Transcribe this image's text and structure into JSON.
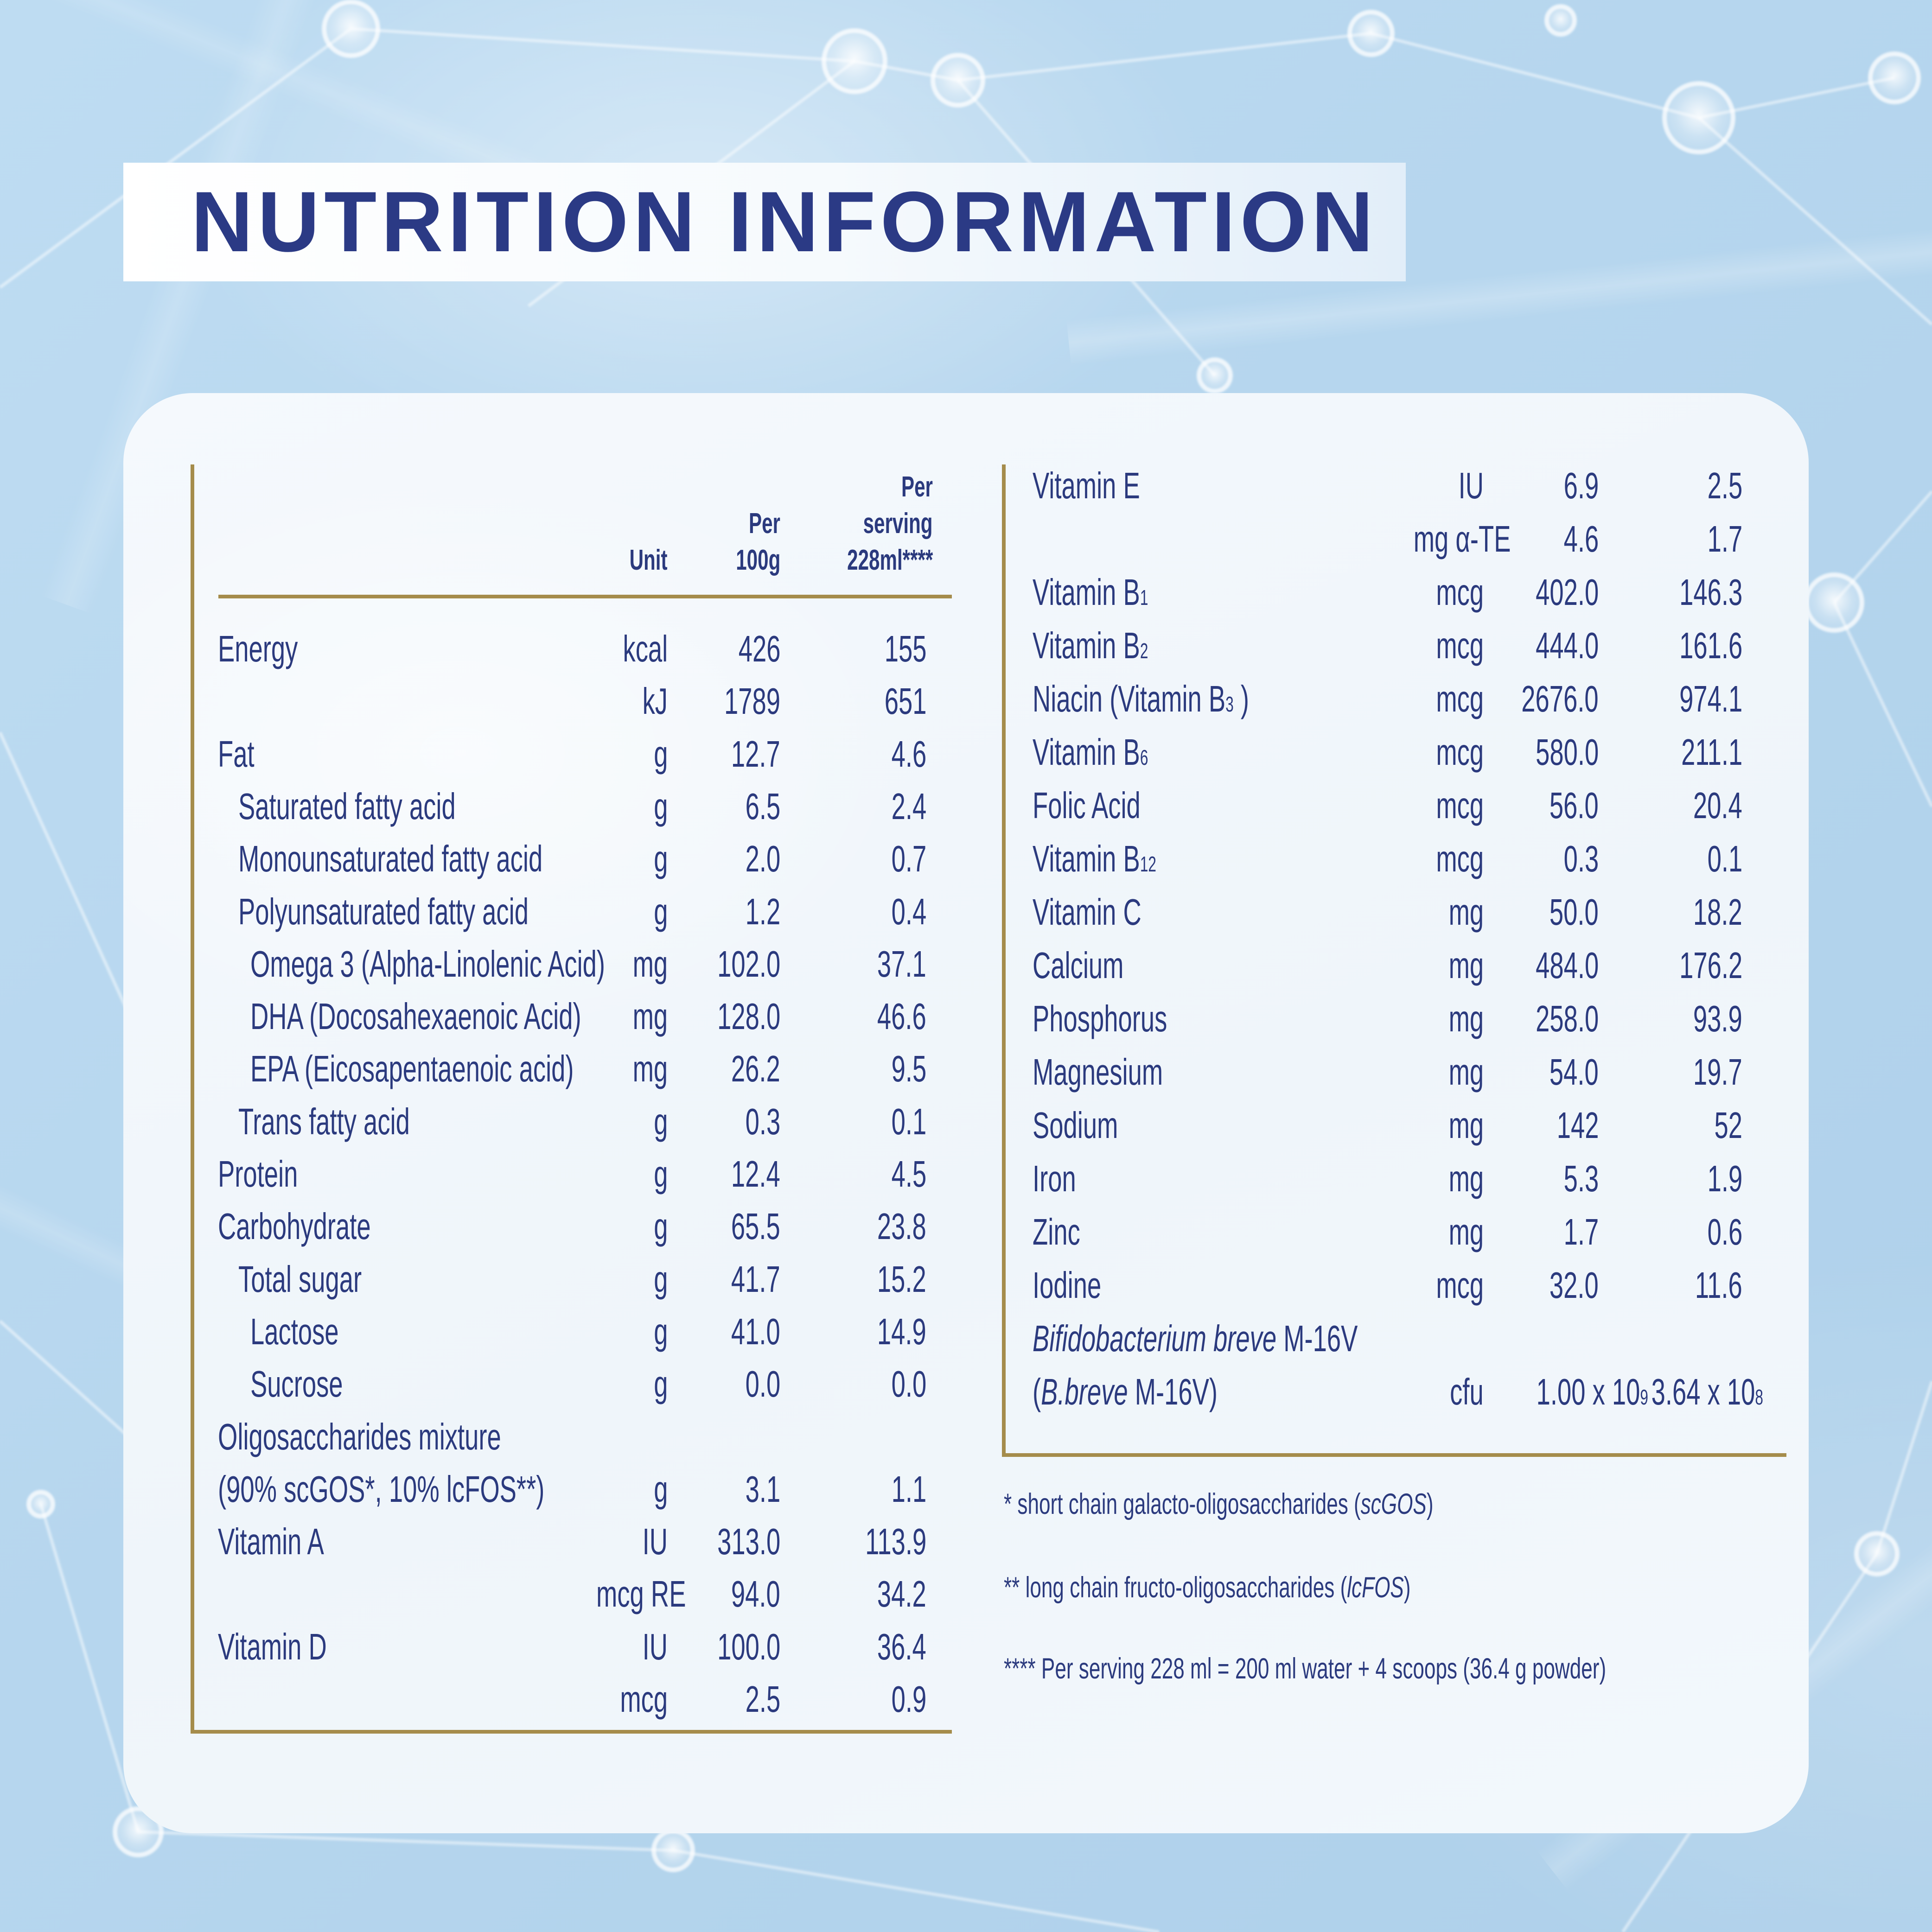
{
  "title": "NUTRITION INFORMATION",
  "colors": {
    "navy": "#2b3a7e",
    "navy_title": "#2b3a85",
    "gold": "#a58c4b",
    "background_blue": "#b6d6ee",
    "card": "#f1f6fb"
  },
  "table": {
    "header": {
      "unit": "Unit",
      "per_100g": [
        "Per",
        "100g"
      ],
      "per_serving": [
        "Per",
        "serving",
        "228ml****"
      ]
    },
    "left_rows": [
      {
        "label": "Energy",
        "indent": 0,
        "unit": "kcal",
        "per100": "426",
        "serving": "155"
      },
      {
        "label": "",
        "indent": 0,
        "unit": "kJ",
        "per100": "1789",
        "serving": "651"
      },
      {
        "label": "Fat",
        "indent": 0,
        "unit": "g",
        "per100": "12.7",
        "serving": "4.6"
      },
      {
        "label": "Saturated fatty acid",
        "indent": 1,
        "unit": "g",
        "per100": "6.5",
        "serving": "2.4"
      },
      {
        "label": "Monounsaturated fatty acid",
        "indent": 1,
        "unit": "g",
        "per100": "2.0",
        "serving": "0.7"
      },
      {
        "label": "Polyunsaturated fatty acid",
        "indent": 1,
        "unit": "g",
        "per100": "1.2",
        "serving": "0.4"
      },
      {
        "label": "Omega 3 (Alpha-Linolenic Acid)",
        "indent": 2,
        "unit": "mg",
        "per100": "102.0",
        "serving": "37.1"
      },
      {
        "label": "DHA (Docosahexaenoic Acid)",
        "indent": 2,
        "unit": "mg",
        "per100": "128.0",
        "serving": "46.6"
      },
      {
        "label": "EPA (Eicosapentaenoic acid)",
        "indent": 2,
        "unit": "mg",
        "per100": "26.2",
        "serving": "9.5"
      },
      {
        "label": "Trans fatty acid",
        "indent": 1,
        "unit": "g",
        "per100": "0.3",
        "serving": "0.1"
      },
      {
        "label": "Protein",
        "indent": 0,
        "unit": "g",
        "per100": "12.4",
        "serving": "4.5"
      },
      {
        "label": "Carbohydrate",
        "indent": 0,
        "unit": "g",
        "per100": "65.5",
        "serving": "23.8"
      },
      {
        "label": "Total sugar",
        "indent": 1,
        "unit": "g",
        "per100": "41.7",
        "serving": "15.2"
      },
      {
        "label": "Lactose",
        "indent": 2,
        "unit": "g",
        "per100": "41.0",
        "serving": "14.9"
      },
      {
        "label": "Sucrose",
        "indent": 2,
        "unit": "g",
        "per100": "0.0",
        "serving": "0.0"
      },
      {
        "label": "Oligosaccharides mixture",
        "indent": 0
      },
      {
        "label": "(90% scGOS*, 10% lcFOS**)",
        "indent": 0,
        "unit": "g",
        "per100": "3.1",
        "serving": "1.1"
      },
      {
        "label": "Vitamin A",
        "indent": 0,
        "unit": "IU",
        "per100": "313.0",
        "serving": "113.9"
      },
      {
        "label": "",
        "indent": 0,
        "unit": "mcg RE",
        "per100": "94.0",
        "serving": "34.2"
      },
      {
        "label": "Vitamin D",
        "indent": 0,
        "unit": "IU",
        "per100": "100.0",
        "serving": "36.4"
      },
      {
        "label": "",
        "indent": 0,
        "unit": "mcg",
        "per100": "2.5",
        "serving": "0.9"
      }
    ],
    "right_rows": [
      {
        "label": "Vitamin E",
        "indent": 0,
        "unit": "IU",
        "per100": "6.9",
        "serving": "2.5"
      },
      {
        "label": "",
        "indent": 0,
        "unit": "mg α-TE",
        "per100": "4.6",
        "serving": "1.7"
      },
      {
        "label": "Vitamin B~1~",
        "indent": 0,
        "unit": "mcg",
        "per100": "402.0",
        "serving": "146.3"
      },
      {
        "label": "Vitamin B~2~",
        "indent": 0,
        "unit": "mcg",
        "per100": "444.0",
        "serving": "161.6"
      },
      {
        "label": "Niacin (Vitamin B~3~ )",
        "indent": 0,
        "unit": "mcg",
        "per100": "2676.0",
        "serving": "974.1"
      },
      {
        "label": "Vitamin B~6~",
        "indent": 0,
        "unit": "mcg",
        "per100": "580.0",
        "serving": "211.1"
      },
      {
        "label": "Folic Acid",
        "indent": 0,
        "unit": "mcg",
        "per100": "56.0",
        "serving": "20.4"
      },
      {
        "label": "Vitamin B~12~",
        "indent": 0,
        "unit": "mcg",
        "per100": "0.3",
        "serving": "0.1"
      },
      {
        "label": "Vitamin C",
        "indent": 0,
        "unit": "mg",
        "per100": "50.0",
        "serving": "18.2"
      },
      {
        "label": "Calcium",
        "indent": 0,
        "unit": "mg",
        "per100": "484.0",
        "serving": "176.2"
      },
      {
        "label": "Phosphorus",
        "indent": 0,
        "unit": "mg",
        "per100": "258.0",
        "serving": "93.9"
      },
      {
        "label": "Magnesium",
        "indent": 0,
        "unit": "mg",
        "per100": "54.0",
        "serving": "19.7"
      },
      {
        "label": "Sodium",
        "indent": 0,
        "unit": "mg",
        "per100": "142",
        "serving": "52"
      },
      {
        "label": "Iron",
        "indent": 0,
        "unit": "mg",
        "per100": "5.3",
        "serving": "1.9"
      },
      {
        "label": "Zinc",
        "indent": 0,
        "unit": "mg",
        "per100": "1.7",
        "serving": "0.6"
      },
      {
        "label": "Iodine",
        "indent": 0,
        "unit": "mcg",
        "per100": "32.0",
        "serving": "11.6"
      },
      {
        "label": "_Bifidobacterium breve_ M-16V",
        "indent": 0
      },
      {
        "label": "(_B.breve_ M-16V)",
        "indent": 0,
        "unit": "cfu",
        "per100": "1.00 x 10^9^",
        "serving": "3.64 x 10^8^"
      }
    ]
  },
  "footnotes": [
    "* short chain galacto-oligosaccharides (_scGOS_)",
    "** long chain fructo-oligosaccharides (_lcFOS_)",
    "**** Per serving 228 ml = 200 ml water + 4 scoops (36.4 g powder)"
  ]
}
